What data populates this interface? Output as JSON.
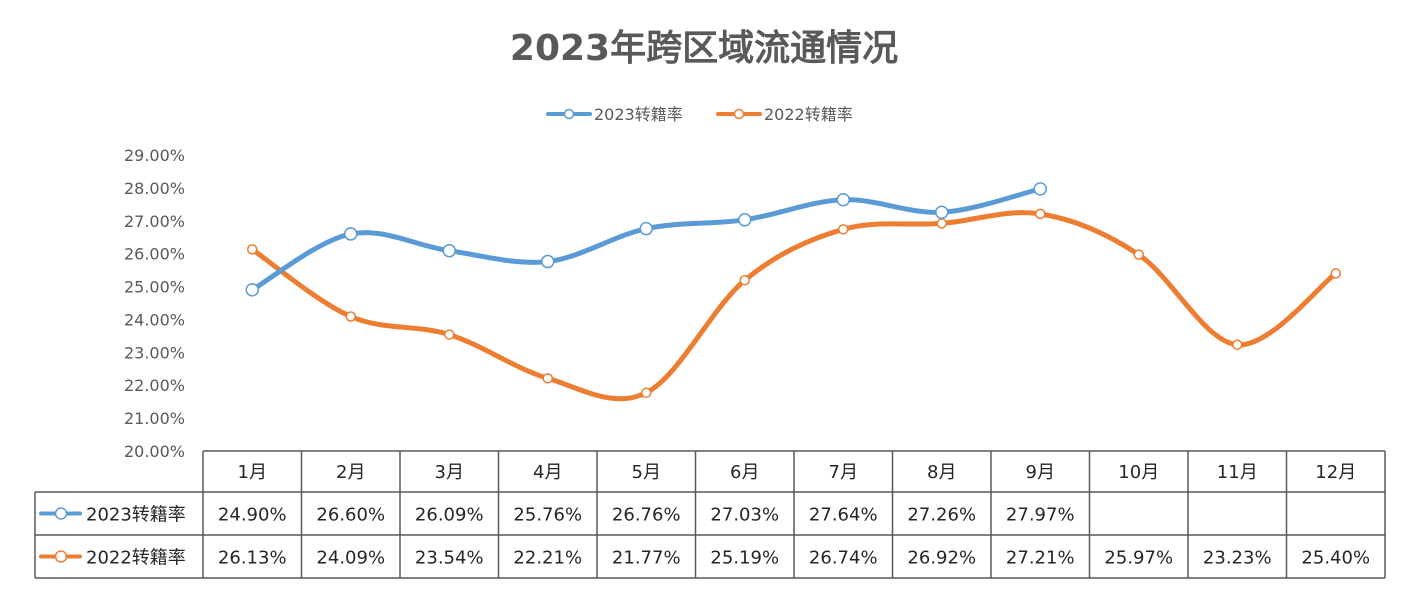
{
  "chart_data": {
    "type": "line",
    "title": "2023年跨区域流通情况",
    "categories": [
      "1月",
      "2月",
      "3月",
      "4月",
      "5月",
      "6月",
      "7月",
      "8月",
      "9月",
      "10月",
      "11月",
      "12月"
    ],
    "series": [
      {
        "name": "2023转籍率",
        "color": "#5B9BD5",
        "values": [
          24.9,
          26.6,
          26.09,
          25.76,
          26.76,
          27.03,
          27.64,
          27.26,
          27.97,
          null,
          null,
          null
        ]
      },
      {
        "name": "2022转籍率",
        "color": "#ED7D31",
        "values": [
          26.13,
          24.09,
          23.54,
          22.21,
          21.77,
          25.19,
          26.74,
          26.92,
          27.21,
          25.97,
          23.23,
          25.4
        ]
      }
    ],
    "ylim": [
      20,
      29
    ],
    "yticks": [
      "20.00%",
      "21.00%",
      "22.00%",
      "23.00%",
      "24.00%",
      "25.00%",
      "26.00%",
      "27.00%",
      "28.00%",
      "29.00%"
    ],
    "smooth": true,
    "legend": "top",
    "data_table": true,
    "grid": false
  }
}
